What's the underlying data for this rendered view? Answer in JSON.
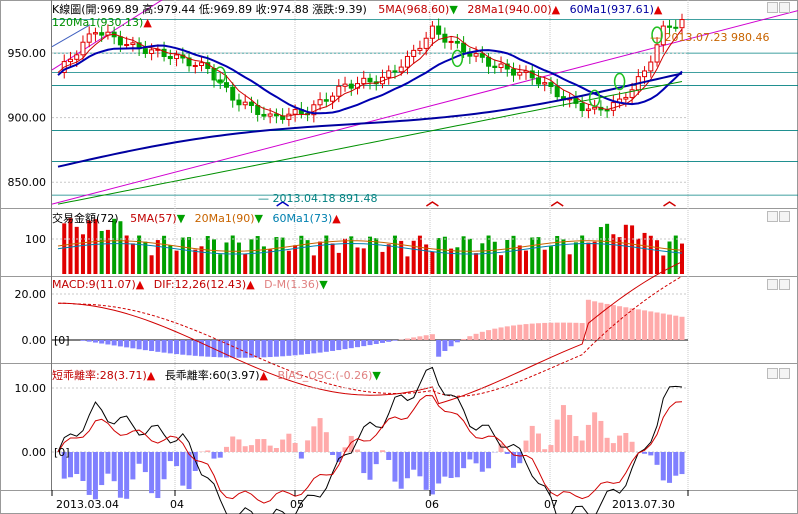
{
  "colors": {
    "up": "#e00000",
    "down": "#00a000",
    "ma5": "#d00000",
    "ma28": "#0000b0",
    "ma60": "#0000b0",
    "ma120": "#009000",
    "trend": "#d000d0",
    "hline": "#008080",
    "grid": "#c8c8c8",
    "macd": "#d00000",
    "dif": "#d00000",
    "osc_pos": "#ffaaaa",
    "osc_neg": "#8080ff",
    "bias_short": "#d00000",
    "bias_long": "#000000"
  },
  "header": {
    "kline_legend": "K線圖(開:969.89 高:979.44 低:969.89 收:974.88 漲跌:9.39)",
    "ma5": "5MA(968.60)",
    "ma28": "28Ma1(940.00)",
    "ma60": "60Ma1(937.61)",
    "ma120": "120Ma1(930.13)",
    "high_note": "— 2013.07.23  980.46",
    "low_note": "— 2013.04.18  891.48"
  },
  "volume_header": {
    "title": "交易金額(72)",
    "ma5": "5MA(57)",
    "ma20": "20Ma1(90)",
    "ma60": "60Ma1(73)"
  },
  "macd_header": {
    "macd": "MACD:9(11.07)",
    "dif": "DIF:12,26(12.43)",
    "dm": "D-M(1.36)"
  },
  "bias_header": {
    "short": "短乖離率:28(3.71)",
    "long": "長乖離率:60(3.97)",
    "osc": "BIAS_OSC:(-0.26)"
  },
  "arrows": {
    "up": "▲",
    "down": "▼"
  },
  "axes": {
    "price_ticks": [
      "950.00",
      "900.00",
      "850.00"
    ],
    "volume_ticks": [
      "100"
    ],
    "macd_ticks": [
      "20.00",
      "0.00"
    ],
    "macd_zero_label": "[0]",
    "bias_ticks": [
      "10.00",
      "0.00"
    ],
    "bias_zero_label": "[0]",
    "date_labels": [
      "2013.03.04",
      "04",
      "05",
      "06",
      "07",
      "2013.07.30"
    ]
  },
  "chart_data": {
    "type": "candlestick",
    "period": "2013.03.04 – 2013.07.30",
    "price_range": [
      830,
      985
    ],
    "last_close": 974.88,
    "ma": {
      "MA5": 968.6,
      "MA28": 940.0,
      "MA60": 937.61,
      "MA120": 930.13
    },
    "high": {
      "date": "2013.07.23",
      "value": 980.46
    },
    "low": {
      "date": "2013.04.18",
      "value": 891.48
    },
    "volume": {
      "value": 72,
      "MA5": 57,
      "MA20": 90,
      "MA60": 73
    },
    "macd": {
      "MACD": 11.07,
      "DIF": 12.43,
      "D-M": 1.36
    },
    "bias": {
      "short_28": 3.71,
      "long_60": 3.97,
      "osc": -0.26
    }
  }
}
